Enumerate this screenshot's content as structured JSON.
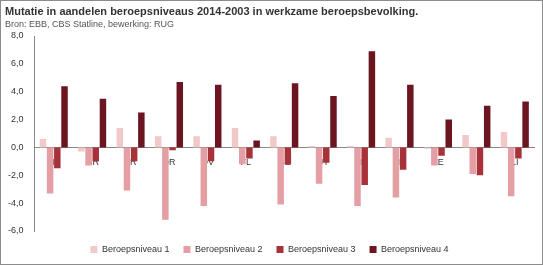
{
  "chart_data": {
    "type": "bar",
    "title": "Mutatie in aandelen beroepsniveaus 2014-2003 in werkzame beroepsbevolking.",
    "subtitle": "Bron: EBB, CBS Statline, bewerking: RUG",
    "categories": [
      "NL",
      "GR",
      "FR",
      "DR",
      "OV",
      "FL",
      "GE",
      "UT",
      "NH",
      "ZH",
      "ZE",
      "NB",
      "LI"
    ],
    "series": [
      {
        "name": "Beroepsniveau 1",
        "color": "#f2c9c9",
        "values": [
          0.6,
          -0.3,
          1.4,
          0.8,
          0.8,
          1.4,
          0.8,
          0.1,
          0.1,
          0.7,
          -0.1,
          0.9,
          1.1
        ]
      },
      {
        "name": "Beroepsniveau 2",
        "color": "#e59ea4",
        "values": [
          -3.3,
          -1.3,
          -3.1,
          -5.2,
          -4.2,
          -1.2,
          -4.1,
          -2.6,
          -4.2,
          -3.6,
          -1.3,
          -1.9,
          -3.5
        ]
      },
      {
        "name": "Beroepsniveau 3",
        "color": "#a8323a",
        "values": [
          -1.5,
          -1.0,
          -1.0,
          -0.2,
          -1.0,
          -0.8,
          -1.2,
          -1.1,
          -2.7,
          -1.6,
          -0.6,
          -2.0,
          -0.8
        ]
      },
      {
        "name": "Beroepsniveau 4",
        "color": "#6b1520",
        "values": [
          4.4,
          3.5,
          2.5,
          4.7,
          4.5,
          0.5,
          4.6,
          3.7,
          6.9,
          4.5,
          2.0,
          3.0,
          3.3
        ]
      }
    ],
    "ylim": [
      -6,
      8
    ],
    "yticks": [
      {
        "value": -6,
        "label": "-6,0"
      },
      {
        "value": -4,
        "label": "-4,0"
      },
      {
        "value": -2,
        "label": "-2,0"
      },
      {
        "value": 0,
        "label": "0,0"
      },
      {
        "value": 2,
        "label": "2,0"
      },
      {
        "value": 4,
        "label": "4,0"
      },
      {
        "value": 6,
        "label": "6,0"
      },
      {
        "value": 8,
        "label": "8,0"
      }
    ],
    "grid": false,
    "legend": "bottom"
  }
}
